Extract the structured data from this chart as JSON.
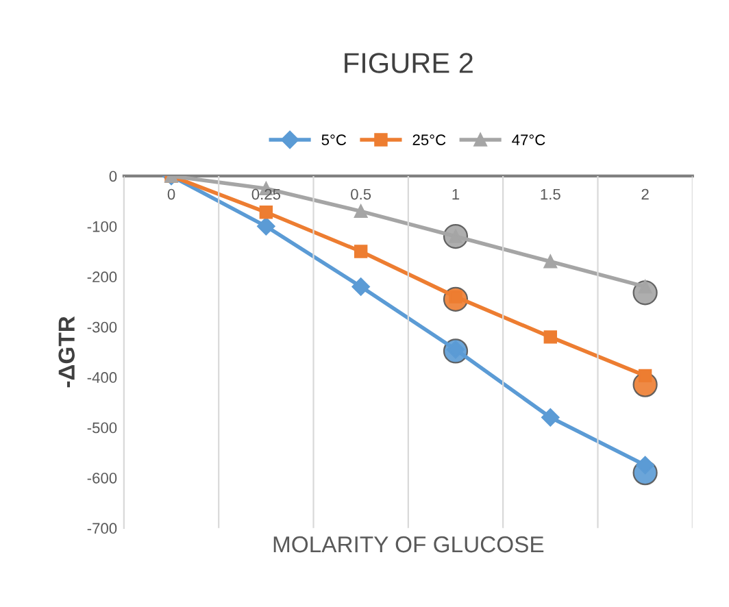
{
  "chart_data": {
    "type": "line",
    "title": "FIGURE 2",
    "xlabel": "MOLARITY OF GLUCOSE",
    "ylabel": "-ΔGTR",
    "categories": [
      "0",
      "0.25",
      "0.5",
      "1",
      "1.5",
      "2"
    ],
    "ylim": [
      -700,
      0
    ],
    "yticks": [
      -700,
      -600,
      -500,
      -400,
      -300,
      -200,
      -100,
      0
    ],
    "grid": "x",
    "legend": "top",
    "series": [
      {
        "name": "5°C",
        "color": "#5b9bd5",
        "marker": "diamond",
        "values": [
          0,
          -100,
          -220,
          -345,
          -480,
          -575
        ]
      },
      {
        "name": "25°C",
        "color": "#ed7d31",
        "marker": "square",
        "values": [
          0,
          -72,
          -150,
          -240,
          -320,
          -397
        ]
      },
      {
        "name": "47°C",
        "color": "#a5a5a5",
        "marker": "triangle",
        "values": [
          0,
          -25,
          -70,
          -120,
          -170,
          -220
        ]
      },
      {
        "type": "scatter",
        "color": "#5b9bd5",
        "marker": "circle",
        "x": [
          "1",
          "2"
        ],
        "values": [
          -348,
          -590
        ]
      },
      {
        "type": "scatter",
        "color": "#ed7d31",
        "marker": "circle",
        "x": [
          "1",
          "2"
        ],
        "values": [
          -245,
          -415
        ]
      },
      {
        "type": "scatter",
        "color": "#a5a5a5",
        "marker": "circle",
        "x": [
          "1",
          "2"
        ],
        "values": [
          -120,
          -232
        ]
      }
    ]
  }
}
